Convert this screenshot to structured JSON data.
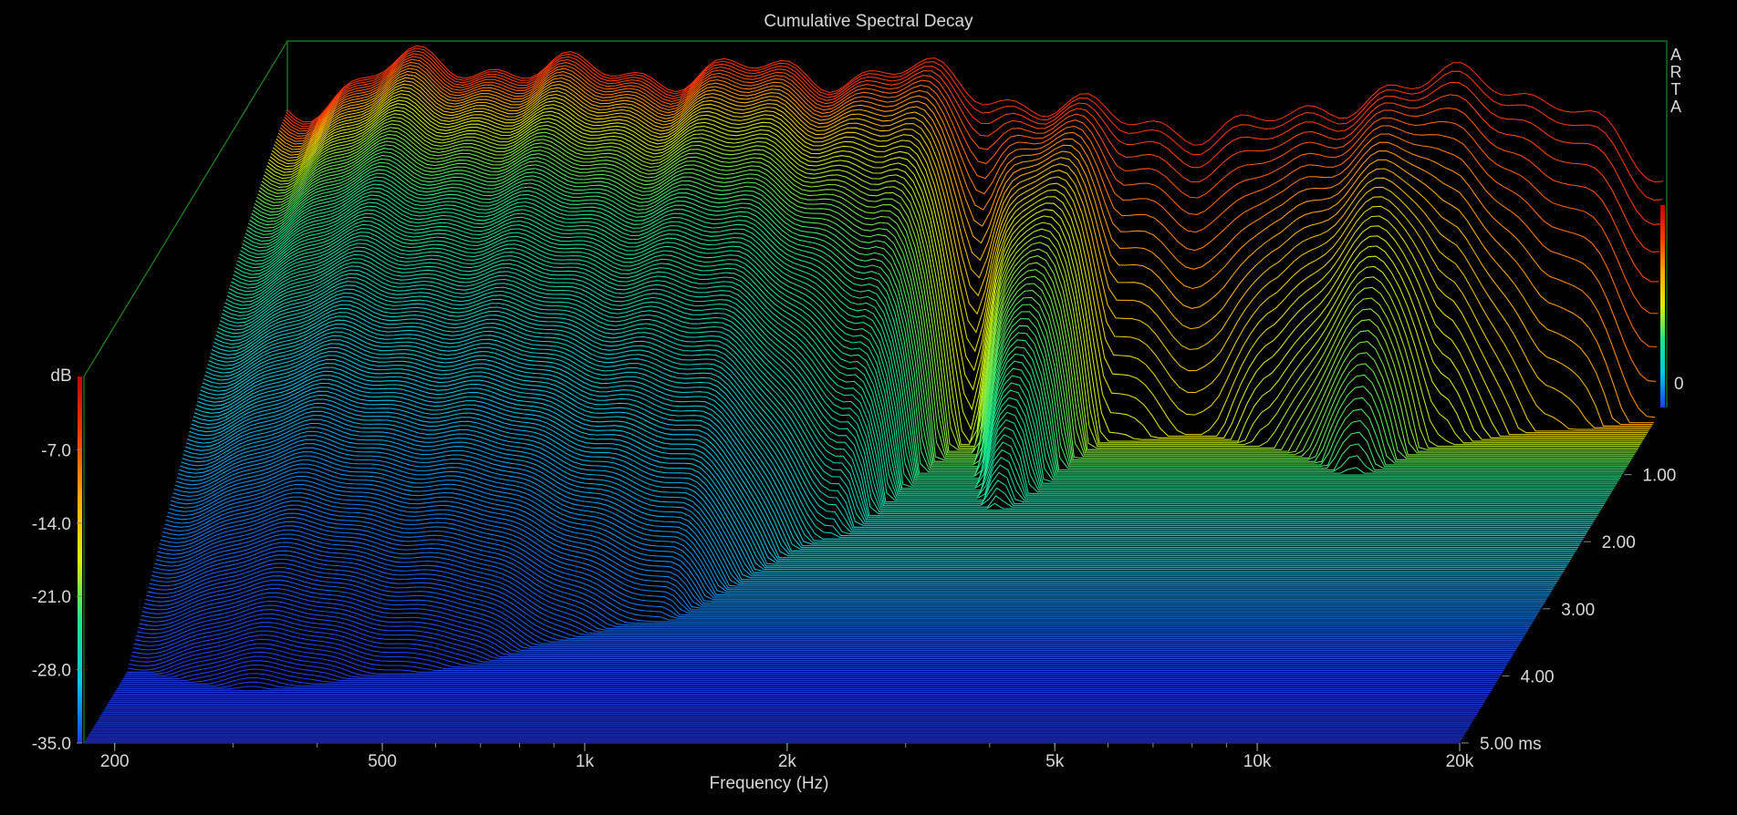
{
  "chart_data": {
    "type": "waterfall",
    "title": "Cumulative Spectral Decay",
    "brand": "ARTA",
    "xlabel": "Frequency (Hz)",
    "zlabel": "dB",
    "time_unit": "ms",
    "x_scale": "log",
    "xlim": [
      180,
      20000
    ],
    "zlim": [
      -35,
      0
    ],
    "tlim": [
      0,
      5.0
    ],
    "x_ticks": [
      200,
      500,
      1000,
      2000,
      5000,
      10000,
      20000
    ],
    "x_tick_labels": [
      "200",
      "500",
      "1k",
      "2k",
      "5k",
      "10k",
      "20k"
    ],
    "z_ticks": [
      -7,
      -14,
      -21,
      -28,
      -35
    ],
    "z_tick_labels": [
      "-7.0",
      "-14.0",
      "-21.0",
      "-28.0",
      "-35.0"
    ],
    "t_ticks": [
      0,
      1,
      2,
      3,
      4,
      5
    ],
    "t_tick_labels": [
      "0",
      "1.00",
      "2.00",
      "3.00",
      "4.00",
      "5.00 ms"
    ],
    "slice_count": 200,
    "colormap": [
      "#1e3cff",
      "#00c8e6",
      "#19e68c",
      "#dcf000",
      "#ffaa00",
      "#ff3c00",
      "#c80000"
    ],
    "surface_samples": [
      {
        "freq": 180,
        "t0_db": -6,
        "decay_ms": 4.6
      },
      {
        "freq": 300,
        "t0_db": -2,
        "decay_ms": 4.4
      },
      {
        "freq": 500,
        "t0_db": -3,
        "decay_ms": 4.2
      },
      {
        "freq": 1000,
        "t0_db": -3,
        "decay_ms": 3.4
      },
      {
        "freq": 1500,
        "t0_db": -3,
        "decay_ms": 2.1
      },
      {
        "freq": 2000,
        "t0_db": -5,
        "decay_ms": 0.6
      },
      {
        "freq": 2500,
        "t0_db": -6,
        "decay_ms": 1.8
      },
      {
        "freq": 3200,
        "t0_db": -8,
        "decay_ms": 0.6
      },
      {
        "freq": 4500,
        "t0_db": -8,
        "decay_ms": 0.5
      },
      {
        "freq": 5500,
        "t0_db": -8,
        "decay_ms": 0.7
      },
      {
        "freq": 8000,
        "t0_db": -4,
        "decay_ms": 1.1
      },
      {
        "freq": 10000,
        "t0_db": -4,
        "decay_ms": 0.6
      },
      {
        "freq": 14000,
        "t0_db": -5,
        "decay_ms": 0.4
      },
      {
        "freq": 20000,
        "t0_db": -14,
        "decay_ms": 0.3
      }
    ]
  }
}
